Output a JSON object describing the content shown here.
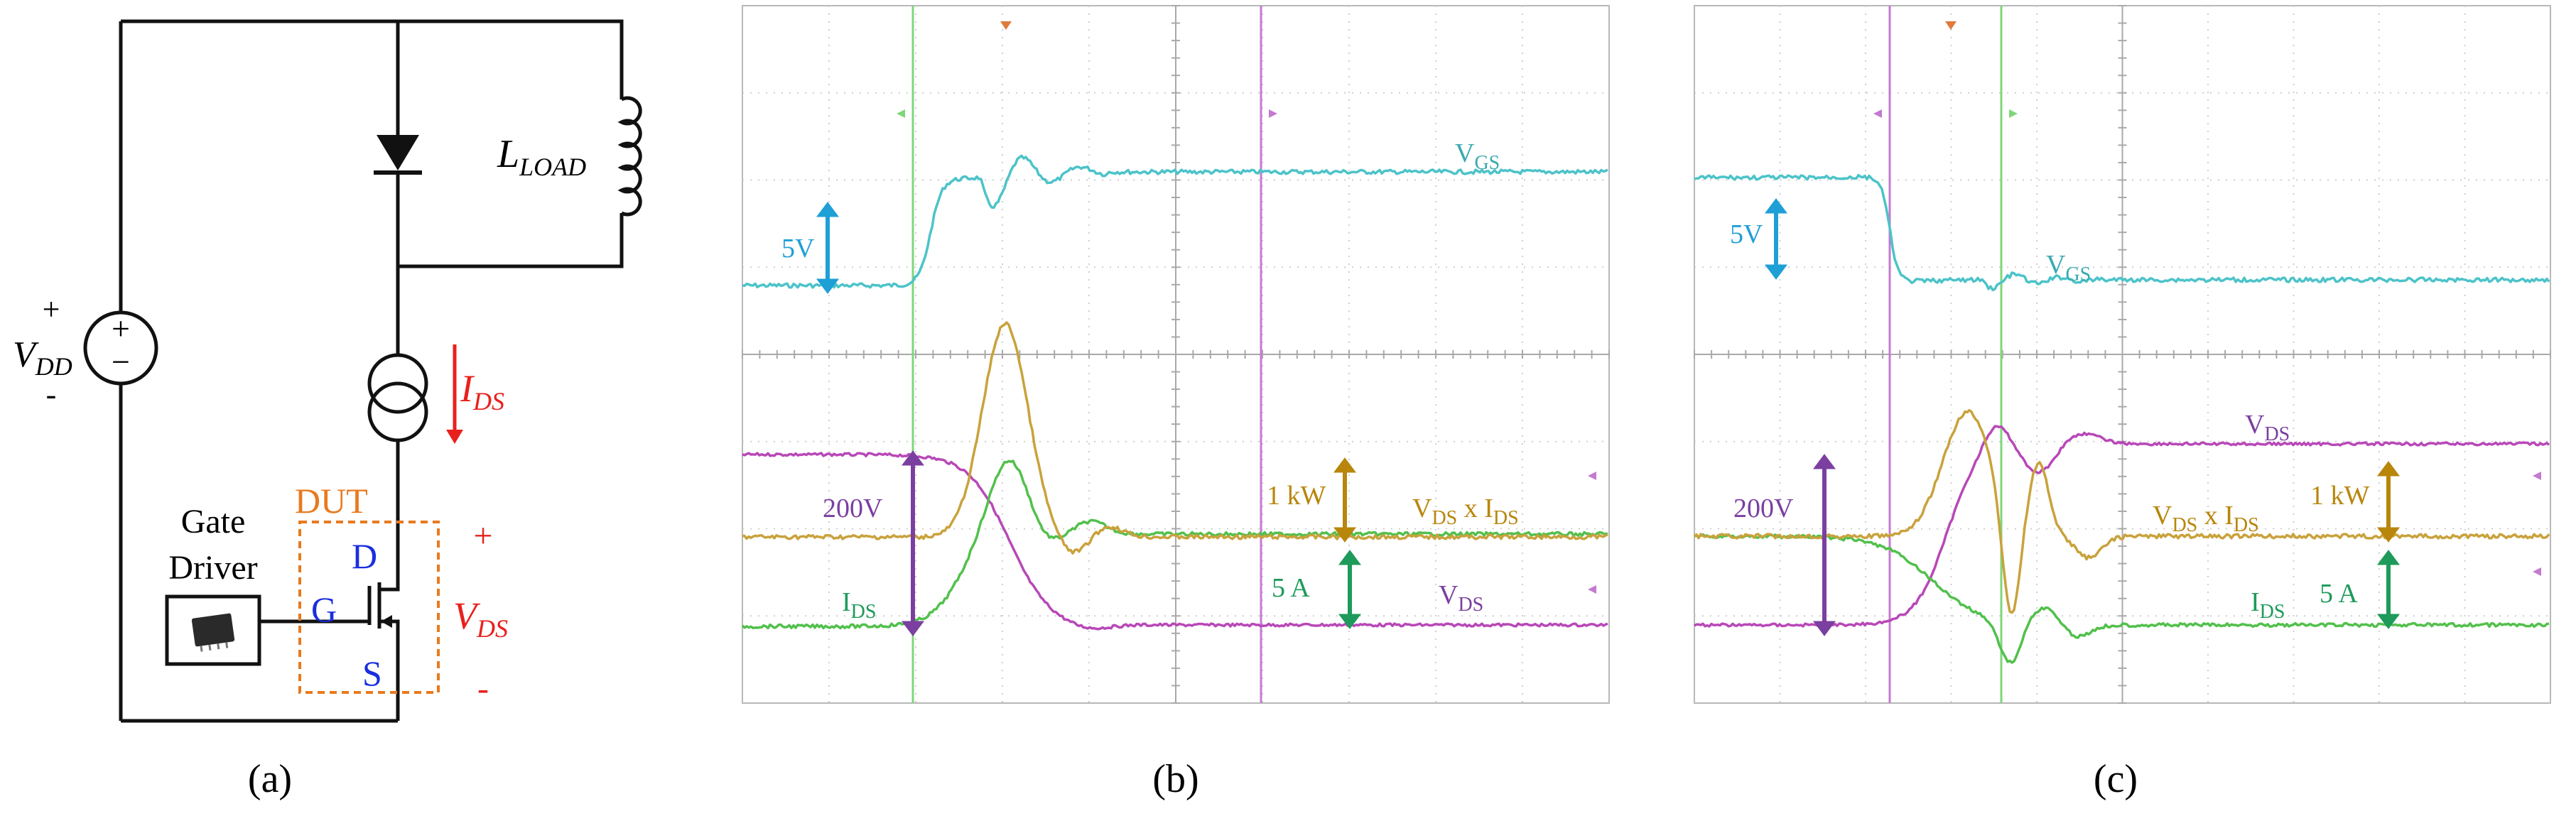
{
  "panel_labels": {
    "a": "(a)",
    "b": "(b)",
    "c": "(c)"
  },
  "circuit": {
    "vdd_plus": "+",
    "vdd_main": "V",
    "vdd_sub": "DD",
    "vdd_minus": "-",
    "source_plus": "+",
    "source_minus": "−",
    "load_main": "L",
    "load_sub": "LOAD",
    "ids_main": "I",
    "ids_sub": "DS",
    "dut_label": "DUT",
    "gate_driver_line1": "Gate",
    "gate_driver_line2": "Driver",
    "terminal_d": "D",
    "terminal_g": "G",
    "terminal_s": "S",
    "vds_plus": "+",
    "vds_main": "V",
    "vds_sub": "DS",
    "vds_minus": "-"
  },
  "scope_b": {
    "vgs_scale": "5V",
    "vgs_main": "V",
    "vgs_sub": "GS",
    "vds_scale": "200V",
    "power_scale": "1 kW",
    "current_scale": "5 A",
    "ids_main": "I",
    "ids_sub": "DS",
    "vds_main": "V",
    "vds_sub": "DS",
    "product_v_main": "V",
    "product_v_sub": "DS",
    "product_x": " x ",
    "product_i_main": "I",
    "product_i_sub": "DS"
  },
  "scope_c": {
    "vgs_scale": "5V",
    "vgs_main": "V",
    "vgs_sub": "GS",
    "vds_scale": "200V",
    "power_scale": "1 kW",
    "current_scale": "5 A",
    "ids_main": "I",
    "ids_sub": "DS",
    "vds_main": "V",
    "vds_sub": "DS",
    "product_v_main": "V",
    "product_v_sub": "DS",
    "product_x": " x ",
    "product_i_main": "I",
    "product_i_sub": "DS"
  },
  "colors": {
    "wire": "#111111",
    "red": "#e8201c",
    "blue": "#1a2ee0",
    "orange": "#e87a1e",
    "vgs": "#4cc3c9",
    "vds": "#b848b8",
    "power": "#c9a23c",
    "ids": "#52c04c",
    "scale_vgs": "#1e9fd6",
    "scale_vds": "#7b3fa0",
    "scale_pw": "#b8860b",
    "scale_i": "#1e9a5a"
  }
}
